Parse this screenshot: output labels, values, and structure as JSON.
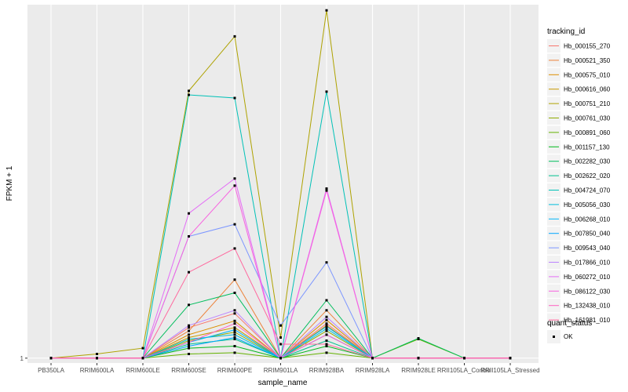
{
  "chart_data": {
    "type": "line",
    "xlabel": "sample_name",
    "ylabel": "FPKM + 1",
    "y_scale": "log",
    "grid": true,
    "legend_position": "right",
    "categories": [
      "PB350LA",
      "RRIM600LA",
      "RRIM600LE",
      "RRIM600SE",
      "RRIM600PE",
      "RRIM901LA",
      "RRIM928BA",
      "RRIM928LA",
      "RRIM928LE",
      "RRII105LA_Control",
      "RRII105LA_Stressed"
    ],
    "y_ticks": [
      {
        "value": 1,
        "label": "1"
      }
    ],
    "ylim": [
      0.85,
      145000
    ],
    "series": [
      {
        "name": "Hb_000155_270",
        "color": "#F8766D",
        "values": [
          1,
          1,
          1,
          2.8,
          4.5,
          1,
          3.2,
          1,
          1,
          1,
          1
        ]
      },
      {
        "name": "Hb_000521_350",
        "color": "#EC8239",
        "values": [
          1,
          1,
          1,
          2.5,
          14,
          1,
          5,
          1,
          1,
          1,
          1
        ]
      },
      {
        "name": "Hb_000575_010",
        "color": "#DB8E00",
        "values": [
          1,
          1,
          1,
          2.2,
          3.5,
          1,
          3.6,
          1,
          1,
          1,
          1
        ]
      },
      {
        "name": "Hb_000616_060",
        "color": "#C79800",
        "values": [
          1,
          1,
          1,
          2,
          2.8,
          1,
          3,
          1,
          1,
          1,
          1
        ]
      },
      {
        "name": "Hb_000751_210",
        "color": "#AEA200",
        "values": [
          1,
          1.15,
          1.4,
          8000,
          50000,
          2,
          120000,
          1,
          1,
          1,
          1
        ]
      },
      {
        "name": "Hb_000761_030",
        "color": "#8FAA00",
        "values": [
          1,
          1,
          1,
          1.8,
          2.4,
          1,
          2.5,
          1,
          1,
          1,
          1
        ]
      },
      {
        "name": "Hb_000891_060",
        "color": "#64B200",
        "values": [
          1,
          1,
          1,
          1.15,
          1.2,
          1,
          1.2,
          1,
          1.9,
          1,
          1
        ]
      },
      {
        "name": "Hb_001157_130",
        "color": "#00B81B",
        "values": [
          1,
          1,
          1,
          1.4,
          1.5,
          1,
          1.5,
          1,
          1,
          1,
          1
        ]
      },
      {
        "name": "Hb_002282_030",
        "color": "#00BD5C",
        "values": [
          1,
          1,
          1,
          6,
          9,
          1,
          7,
          1,
          1.95,
          1,
          1
        ]
      },
      {
        "name": "Hb_002622_020",
        "color": "#00C08E",
        "values": [
          1,
          1,
          1,
          1.6,
          1.9,
          1,
          1.8,
          1,
          1,
          1,
          1
        ]
      },
      {
        "name": "Hb_004724_070",
        "color": "#00C1B7",
        "values": [
          1,
          1,
          1,
          7000,
          6300,
          1,
          7800,
          1,
          1,
          1,
          1
        ]
      },
      {
        "name": "Hb_005056_030",
        "color": "#00BDDC",
        "values": [
          1,
          1,
          1,
          1.9,
          2.2,
          1,
          2.7,
          1,
          1,
          1,
          1
        ]
      },
      {
        "name": "Hb_006268_010",
        "color": "#00B5F8",
        "values": [
          1,
          1,
          1,
          1.7,
          2.6,
          1,
          2.9,
          1,
          1,
          1,
          1
        ]
      },
      {
        "name": "Hb_007850_040",
        "color": "#00A6FF",
        "values": [
          1,
          1,
          1,
          1.5,
          2,
          1,
          2.2,
          1,
          1,
          1,
          1
        ]
      },
      {
        "name": "Hb_009543_040",
        "color": "#7C96FF",
        "values": [
          1,
          1,
          1,
          60,
          90,
          3,
          25,
          1,
          1,
          1,
          1
        ]
      },
      {
        "name": "Hb_017866_010",
        "color": "#BB83FF",
        "values": [
          1,
          1,
          1,
          3,
          5,
          1,
          4,
          1,
          1,
          1,
          1
        ]
      },
      {
        "name": "Hb_060272_010",
        "color": "#E46DF6",
        "values": [
          1,
          1,
          1,
          130,
          420,
          1,
          300,
          1,
          1,
          1,
          1
        ]
      },
      {
        "name": "Hb_086122_030",
        "color": "#F763E0",
        "values": [
          1,
          1,
          1,
          60,
          330,
          1,
          280,
          1,
          1,
          1,
          1
        ]
      },
      {
        "name": "Hb_132438_010",
        "color": "#FF61C1",
        "values": [
          1,
          1,
          1,
          1.7,
          3.2,
          1,
          2.2,
          1,
          1,
          1,
          1
        ]
      },
      {
        "name": "Hb_161981_010",
        "color": "#FF689E",
        "values": [
          1,
          1,
          1,
          18,
          40,
          1.6,
          1.6,
          1,
          1,
          1,
          1
        ]
      }
    ],
    "point_legend": {
      "title": "quant_status",
      "label": "OK"
    }
  },
  "legend": {
    "title": "tracking_id"
  }
}
